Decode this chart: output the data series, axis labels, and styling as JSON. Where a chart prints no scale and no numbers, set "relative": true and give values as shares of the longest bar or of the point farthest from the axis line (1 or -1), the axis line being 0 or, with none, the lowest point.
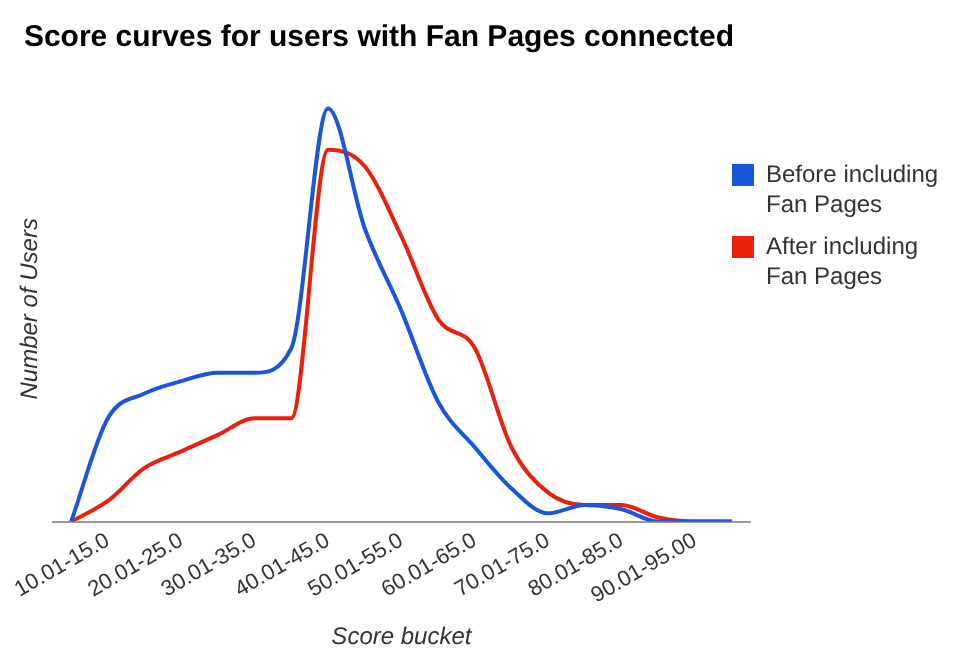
{
  "chart_data": {
    "type": "line",
    "title": "Score curves for users with Fan Pages connected",
    "xlabel": "Score bucket",
    "ylabel": "Number of Users",
    "relative": true,
    "legend": "right",
    "marker": "none",
    "categories": [
      null,
      "10.01-15.0",
      null,
      "20.01-25.0",
      null,
      "30.01-35.0",
      null,
      "40.01-45.0",
      null,
      "50.01-55.0",
      null,
      "60.01-65.0",
      null,
      "70.01-75.0",
      null,
      "80.01-85.0",
      null,
      "90.01-95.00",
      null
    ],
    "series": [
      {
        "name": "Before including Fan Pages",
        "color": "#1a56db",
        "values": [
          0,
          0.25,
          0.31,
          0.34,
          0.36,
          0.36,
          0.42,
          1,
          0.71,
          0.51,
          0.29,
          0.18,
          0.08,
          0.02,
          0.04,
          0.03,
          0,
          0,
          0
        ]
      },
      {
        "name": "After including Fan Pages",
        "color": "#e8200c",
        "values": [
          0,
          0.05,
          0.13,
          0.17,
          0.21,
          0.25,
          0.25,
          0.9,
          0.86,
          0.69,
          0.49,
          0.42,
          0.18,
          0.07,
          0.04,
          0.04,
          0.01,
          0,
          0
        ]
      }
    ]
  }
}
